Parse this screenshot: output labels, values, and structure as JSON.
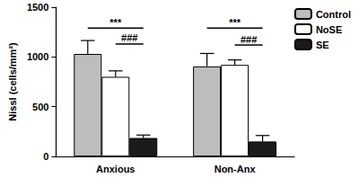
{
  "chart_data": {
    "type": "bar",
    "y_label": "Nissl (cells/mm²)",
    "categories": [
      "Anxious",
      "Non-Anx"
    ],
    "series": [
      {
        "name": "Control",
        "color": "#bdbdbd",
        "values": [
          1030,
          905
        ],
        "errors": [
          135,
          130
        ]
      },
      {
        "name": "NoSE",
        "color": "#ffffff",
        "values": [
          800,
          920
        ],
        "errors": [
          60,
          50
        ]
      },
      {
        "name": "SE",
        "color": "#1a1a1a",
        "values": [
          185,
          150
        ],
        "errors": [
          30,
          60
        ]
      }
    ],
    "ylim": [
      0,
      1500
    ],
    "yticks": [
      0,
      500,
      1000,
      1500
    ],
    "grid": false,
    "legend": "top-right",
    "annotations": [
      {
        "text": "***",
        "category": "Anxious",
        "from": "Control",
        "to": "SE",
        "y": 1290
      },
      {
        "text": "###",
        "category": "Anxious",
        "from": "NoSE",
        "to": "SE",
        "y": 1130
      },
      {
        "text": "***",
        "category": "Non-Anx",
        "from": "Control",
        "to": "SE",
        "y": 1290
      },
      {
        "text": "###",
        "category": "Non-Anx",
        "from": "NoSE",
        "to": "SE",
        "y": 1120
      }
    ]
  }
}
